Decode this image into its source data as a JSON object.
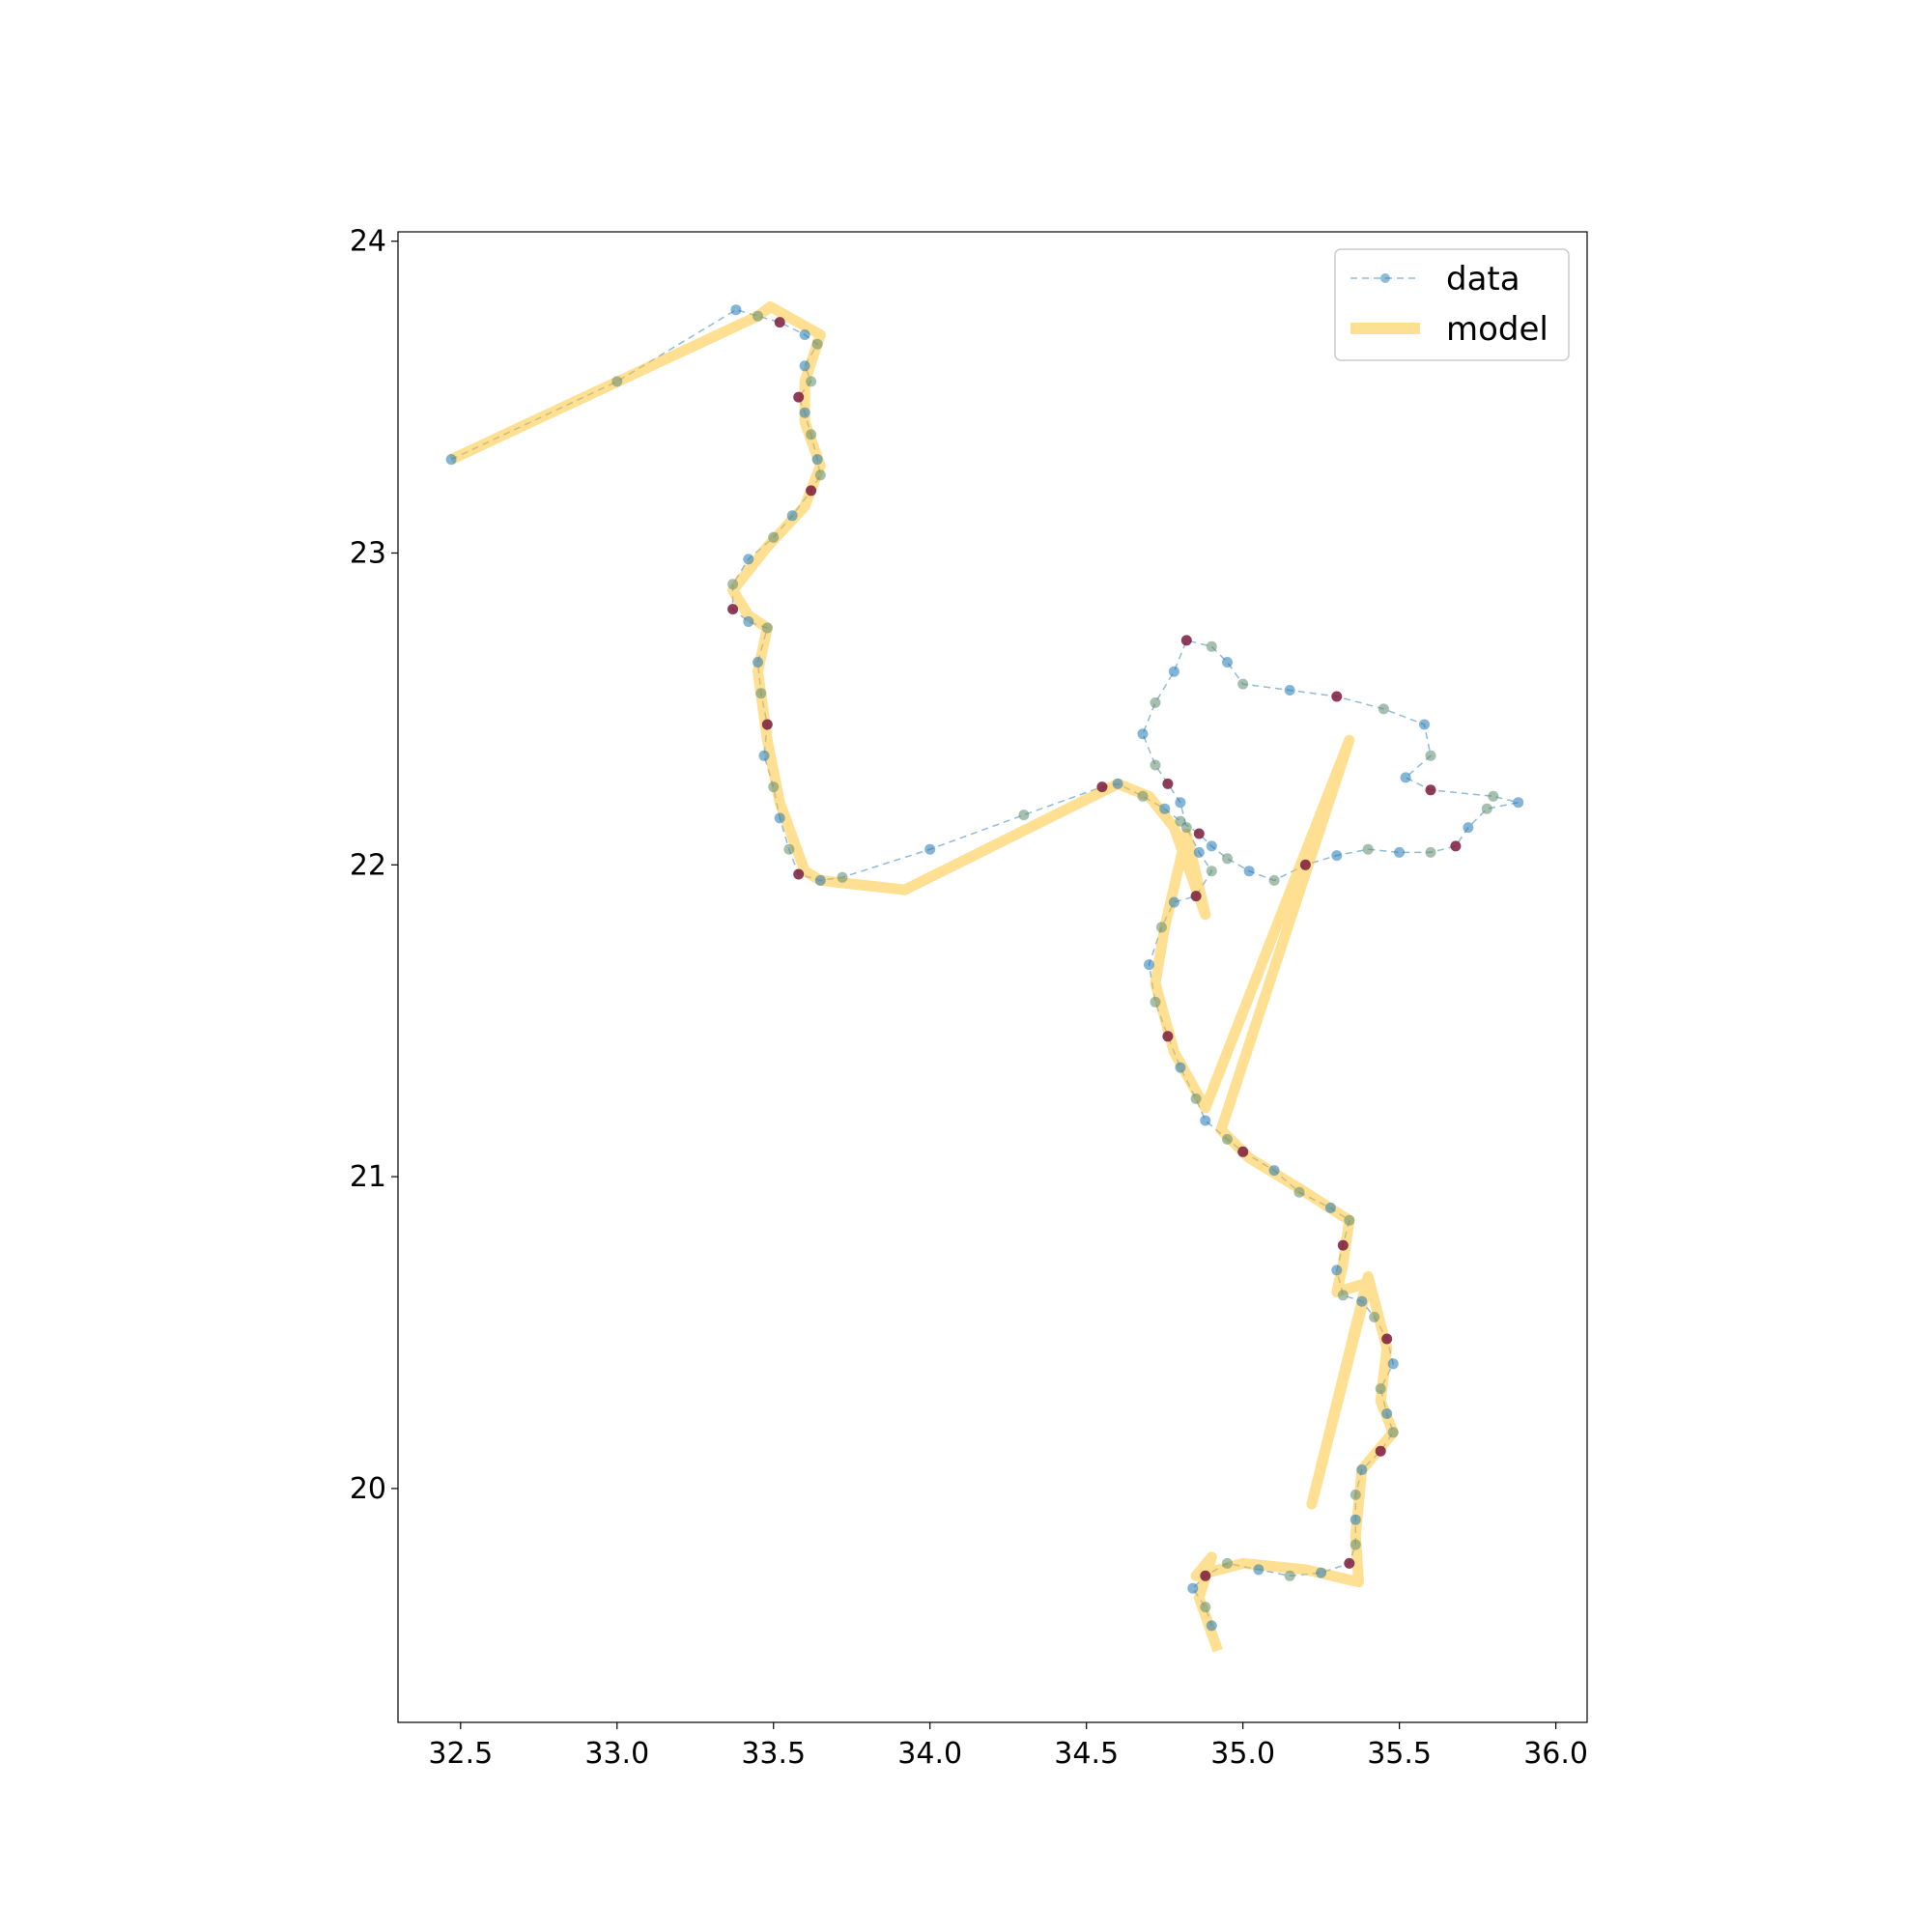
{
  "chart_data": {
    "type": "line",
    "title": "",
    "xlabel": "",
    "ylabel": "",
    "xlim": [
      32.3,
      36.1
    ],
    "ylim": [
      19.25,
      24.03
    ],
    "xticks": [
      32.5,
      33.0,
      33.5,
      34.0,
      34.5,
      35.0,
      35.5,
      36.0
    ],
    "xtick_labels": [
      "32.5",
      "33.0",
      "33.5",
      "34.0",
      "34.5",
      "35.0",
      "35.5",
      "36.0"
    ],
    "yticks": [
      20,
      21,
      22,
      23,
      24
    ],
    "ytick_labels": [
      "20",
      "21",
      "22",
      "23",
      "24"
    ],
    "grid": false,
    "legend": {
      "placement": "top-right",
      "entries": [
        "data",
        "model"
      ]
    },
    "colors": {
      "data": "#1f77b4",
      "model": "#ffc125",
      "outlier": "#7b1a3c",
      "mixed": "#5e8a6c"
    },
    "series": [
      {
        "name": "data",
        "style": "dashed-line-with-markers",
        "points": [
          [
            32.47,
            23.3
          ],
          [
            33.0,
            23.55
          ],
          [
            33.38,
            23.78
          ],
          [
            33.45,
            23.76
          ],
          [
            33.52,
            23.74
          ],
          [
            33.6,
            23.7
          ],
          [
            33.64,
            23.67
          ],
          [
            33.6,
            23.6
          ],
          [
            33.62,
            23.55
          ],
          [
            33.58,
            23.5
          ],
          [
            33.6,
            23.45
          ],
          [
            33.62,
            23.38
          ],
          [
            33.64,
            23.3
          ],
          [
            33.65,
            23.25
          ],
          [
            33.62,
            23.2
          ],
          [
            33.56,
            23.12
          ],
          [
            33.5,
            23.05
          ],
          [
            33.42,
            22.98
          ],
          [
            33.37,
            22.9
          ],
          [
            33.37,
            22.82
          ],
          [
            33.42,
            22.78
          ],
          [
            33.48,
            22.76
          ],
          [
            33.45,
            22.65
          ],
          [
            33.46,
            22.55
          ],
          [
            33.48,
            22.45
          ],
          [
            33.47,
            22.35
          ],
          [
            33.5,
            22.25
          ],
          [
            33.52,
            22.15
          ],
          [
            33.55,
            22.05
          ],
          [
            33.58,
            21.97
          ],
          [
            33.65,
            21.95
          ],
          [
            33.72,
            21.96
          ],
          [
            34.0,
            22.05
          ],
          [
            34.3,
            22.16
          ],
          [
            34.55,
            22.25
          ],
          [
            34.6,
            22.26
          ],
          [
            34.68,
            22.22
          ],
          [
            34.75,
            22.18
          ],
          [
            34.8,
            22.14
          ],
          [
            34.86,
            22.1
          ],
          [
            34.9,
            22.06
          ],
          [
            34.95,
            22.02
          ],
          [
            35.02,
            21.98
          ],
          [
            35.1,
            21.95
          ],
          [
            35.2,
            22.0
          ],
          [
            35.3,
            22.03
          ],
          [
            35.4,
            22.05
          ],
          [
            35.5,
            22.04
          ],
          [
            35.6,
            22.04
          ],
          [
            35.68,
            22.06
          ],
          [
            35.72,
            22.12
          ],
          [
            35.78,
            22.18
          ],
          [
            35.88,
            22.2
          ],
          [
            35.8,
            22.22
          ],
          [
            35.6,
            22.24
          ],
          [
            35.52,
            22.28
          ],
          [
            35.6,
            22.35
          ],
          [
            35.58,
            22.45
          ],
          [
            35.45,
            22.5
          ],
          [
            35.3,
            22.54
          ],
          [
            35.15,
            22.56
          ],
          [
            35.0,
            22.58
          ],
          [
            34.95,
            22.65
          ],
          [
            34.9,
            22.7
          ],
          [
            34.82,
            22.72
          ],
          [
            34.78,
            22.62
          ],
          [
            34.72,
            22.52
          ],
          [
            34.68,
            22.42
          ],
          [
            34.72,
            22.32
          ],
          [
            34.76,
            22.26
          ],
          [
            34.8,
            22.2
          ],
          [
            34.82,
            22.12
          ],
          [
            34.86,
            22.04
          ],
          [
            34.9,
            21.98
          ],
          [
            34.85,
            21.9
          ],
          [
            34.78,
            21.88
          ],
          [
            34.74,
            21.8
          ],
          [
            34.7,
            21.68
          ],
          [
            34.72,
            21.56
          ],
          [
            34.76,
            21.45
          ],
          [
            34.8,
            21.35
          ],
          [
            34.85,
            21.25
          ],
          [
            34.88,
            21.18
          ],
          [
            34.95,
            21.12
          ],
          [
            35.0,
            21.08
          ],
          [
            35.1,
            21.02
          ],
          [
            35.18,
            20.95
          ],
          [
            35.28,
            20.9
          ],
          [
            35.34,
            20.86
          ],
          [
            35.32,
            20.78
          ],
          [
            35.3,
            20.7
          ],
          [
            35.32,
            20.62
          ],
          [
            35.38,
            20.6
          ],
          [
            35.42,
            20.55
          ],
          [
            35.46,
            20.48
          ],
          [
            35.48,
            20.4
          ],
          [
            35.44,
            20.32
          ],
          [
            35.46,
            20.24
          ],
          [
            35.48,
            20.18
          ],
          [
            35.44,
            20.12
          ],
          [
            35.38,
            20.06
          ],
          [
            35.36,
            19.98
          ],
          [
            35.36,
            19.9
          ],
          [
            35.36,
            19.82
          ],
          [
            35.34,
            19.76
          ],
          [
            35.25,
            19.73
          ],
          [
            35.15,
            19.72
          ],
          [
            35.05,
            19.74
          ],
          [
            34.95,
            19.76
          ],
          [
            34.88,
            19.72
          ],
          [
            34.84,
            19.68
          ],
          [
            34.88,
            19.62
          ],
          [
            34.9,
            19.56
          ]
        ]
      },
      {
        "name": "model",
        "style": "thick-line",
        "points": [
          [
            32.47,
            23.3
          ],
          [
            33.45,
            23.76
          ],
          [
            33.49,
            23.79
          ],
          [
            33.65,
            23.7
          ],
          [
            33.6,
            23.55
          ],
          [
            33.6,
            23.42
          ],
          [
            33.65,
            23.28
          ],
          [
            33.6,
            23.15
          ],
          [
            33.48,
            23.02
          ],
          [
            33.37,
            22.88
          ],
          [
            33.42,
            22.8
          ],
          [
            33.48,
            22.76
          ],
          [
            33.45,
            22.62
          ],
          [
            33.48,
            22.4
          ],
          [
            33.52,
            22.2
          ],
          [
            33.6,
            21.98
          ],
          [
            33.65,
            21.95
          ],
          [
            33.92,
            21.92
          ],
          [
            34.6,
            22.26
          ],
          [
            34.7,
            22.22
          ],
          [
            34.78,
            22.12
          ],
          [
            34.88,
            21.84
          ],
          [
            34.82,
            22.1
          ],
          [
            34.75,
            21.8
          ],
          [
            34.72,
            21.62
          ],
          [
            34.78,
            21.4
          ],
          [
            34.88,
            21.22
          ],
          [
            35.34,
            22.4
          ],
          [
            34.93,
            21.15
          ],
          [
            35.02,
            21.06
          ],
          [
            35.2,
            20.95
          ],
          [
            35.34,
            20.86
          ],
          [
            35.32,
            20.72
          ],
          [
            35.3,
            20.63
          ],
          [
            35.4,
            20.66
          ],
          [
            35.22,
            19.95
          ],
          [
            35.4,
            20.68
          ],
          [
            35.46,
            20.45
          ],
          [
            35.44,
            20.28
          ],
          [
            35.48,
            20.18
          ],
          [
            35.38,
            20.06
          ],
          [
            35.36,
            19.85
          ],
          [
            35.37,
            19.7
          ],
          [
            35.2,
            19.74
          ],
          [
            35.0,
            19.76
          ],
          [
            34.85,
            19.72
          ],
          [
            34.9,
            19.78
          ],
          [
            34.86,
            19.65
          ],
          [
            34.92,
            19.48
          ]
        ]
      }
    ]
  }
}
